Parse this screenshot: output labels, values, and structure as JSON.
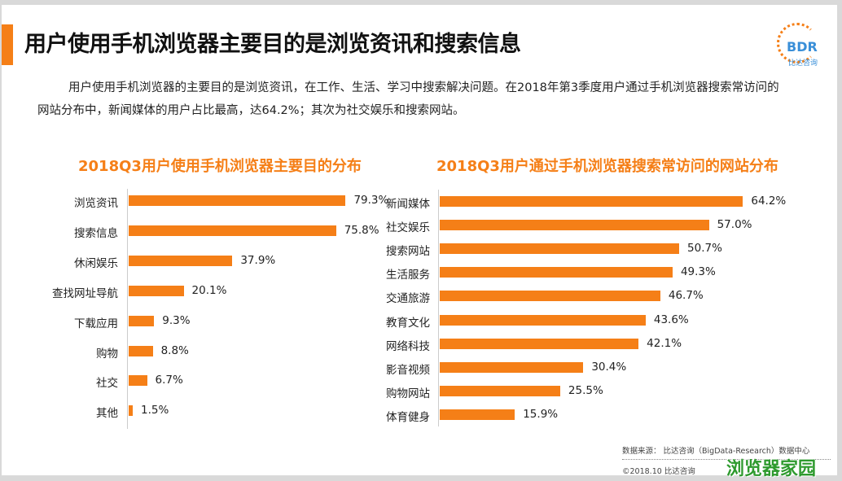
{
  "title": "用户使用手机浏览器主要目的是浏览资讯和搜索信息",
  "logo": {
    "text": "BDR",
    "sub": "比达咨询"
  },
  "description": "用户使用手机浏览器的主要目的是浏览资讯，在工作、生活、学习中搜索解决问题。在2018年第3季度用户通过手机浏览器搜索常访问的网站分布中，新闻媒体的用户占比最高，达64.2%；其次为社交娱乐和搜索网站。",
  "colors": {
    "bar": "#f57f17",
    "accent": "#f57f17"
  },
  "chart_data": [
    {
      "type": "bar",
      "orientation": "horizontal",
      "title": "2018Q3用户使用手机浏览器主要目的分布",
      "categories": [
        "浏览资讯",
        "搜索信息",
        "休闲娱乐",
        "查找网址导航",
        "下载应用",
        "购物",
        "社交",
        "其他"
      ],
      "values": [
        79.3,
        75.8,
        37.9,
        20.1,
        9.3,
        8.8,
        6.7,
        1.5
      ],
      "unit": "%"
    },
    {
      "type": "bar",
      "orientation": "horizontal",
      "title": "2018Q3用户通过手机浏览器搜索常访问的网站分布",
      "categories": [
        "新闻媒体",
        "社交娱乐",
        "搜索网站",
        "生活服务",
        "交通旅游",
        "教育文化",
        "网络科技",
        "影音视频",
        "购物网站",
        "体育健身"
      ],
      "values": [
        64.2,
        57.0,
        50.7,
        49.3,
        46.7,
        43.6,
        42.1,
        30.4,
        25.5,
        15.9
      ],
      "unit": "%"
    }
  ],
  "footer": {
    "source": "数据来源： 比达咨询（BigData-Research）数据中心",
    "copyright": "©2018.10  比达咨询",
    "watermark": "浏览器家园"
  }
}
